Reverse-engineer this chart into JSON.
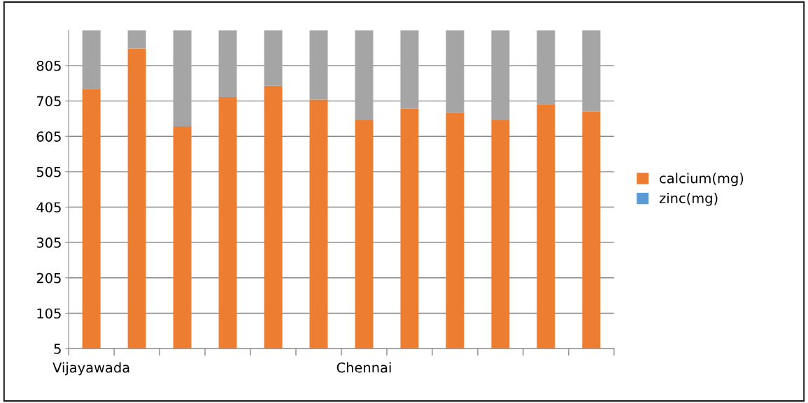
{
  "chart_data": {
    "type": "bar",
    "stacked": true,
    "categories": [
      "Vijayawada",
      null,
      null,
      null,
      null,
      null,
      "Chennai",
      null,
      null,
      null,
      null,
      null
    ],
    "series": [
      {
        "name": "calcium(mg)",
        "color": "#ed7d31",
        "values": [
          739,
          853,
          633,
          716,
          748,
          709,
          651,
          683,
          672,
          651,
          696,
          675
        ]
      },
      {
        "name": "zinc(mg)",
        "color": "#5b9bd5",
        "values": [
          null,
          null,
          null,
          null,
          null,
          null,
          null,
          null,
          null,
          null,
          null,
          null
        ]
      },
      {
        "color": "#a5a5a5",
        "values": [
          166,
          52,
          272,
          189,
          157,
          196,
          254,
          222,
          233,
          254,
          209,
          230
        ]
      }
    ],
    "ylim": [
      5,
      905
    ],
    "yticks": [
      5,
      105,
      205,
      305,
      405,
      505,
      605,
      705,
      805
    ],
    "grid": "y",
    "legend": "right"
  }
}
